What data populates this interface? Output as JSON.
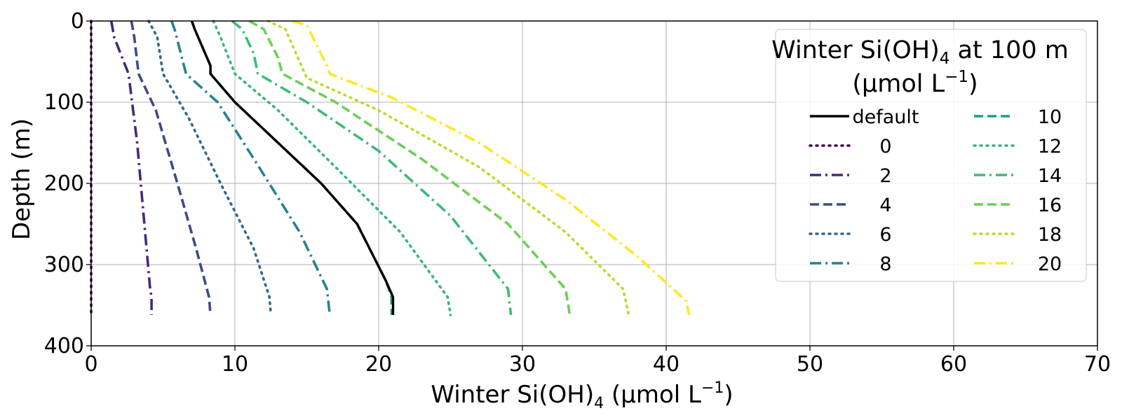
{
  "chart_data": {
    "type": "line",
    "title": "",
    "xlabel_main": "Winter Si(OH)",
    "xlabel_sub": "4",
    "xlabel_unit_pre": " (μmol L",
    "xlabel_unit_sup": "−1",
    "xlabel_unit_post": ")",
    "ylabel": "Depth (m)",
    "xlim": [
      0,
      70
    ],
    "ylim": [
      0,
      400
    ],
    "y_inverted": true,
    "grid": true,
    "xticks": [
      "0",
      "10",
      "20",
      "30",
      "40",
      "50",
      "60",
      "70"
    ],
    "yticks": [
      "0",
      "100",
      "200",
      "300",
      "400"
    ],
    "legend": {
      "placement": "top-right",
      "title_line1_main": "Winter Si(OH)",
      "title_line1_sub": "4",
      "title_line1_post": " at 100 m",
      "title_line2_pre": "(μmol L",
      "title_line2_sup": "−1",
      "title_line2_post": ")",
      "columns": 2
    },
    "series": [
      {
        "name": "default",
        "color": "#000000",
        "style": "solid",
        "x": [
          7.0,
          7.2,
          8.3,
          8.3,
          10.0,
          13.0,
          16.0,
          18.5,
          20.5,
          21.0,
          21.0
        ],
        "y": [
          0,
          10,
          55,
          65,
          100,
          150,
          200,
          250,
          320,
          340,
          362
        ]
      },
      {
        "name": "0",
        "color": "#440154",
        "style": "dotted",
        "x": [
          0,
          0,
          0,
          0
        ],
        "y": [
          0,
          100,
          200,
          362
        ]
      },
      {
        "name": "2",
        "color": "#482878",
        "style": "dashdot",
        "x": [
          1.4,
          1.6,
          2.6,
          3.2,
          3.7,
          4.1,
          4.2,
          4.2
        ],
        "y": [
          0,
          20,
          65,
          150,
          250,
          330,
          340,
          362
        ]
      },
      {
        "name": "4",
        "color": "#3e4989",
        "style": "dashed",
        "x": [
          2.8,
          3.0,
          3.3,
          4.5,
          6.0,
          7.3,
          8.2,
          8.3
        ],
        "y": [
          0,
          20,
          65,
          110,
          200,
          280,
          340,
          362
        ]
      },
      {
        "name": "6",
        "color": "#31688e",
        "style": "dotted",
        "x": [
          4.0,
          4.6,
          5.0,
          6.8,
          9.0,
          11.3,
          12.4,
          12.5
        ],
        "y": [
          0,
          20,
          65,
          120,
          200,
          280,
          340,
          362
        ]
      },
      {
        "name": "8",
        "color": "#26828e",
        "style": "dashdot",
        "x": [
          5.6,
          5.8,
          6.6,
          8.8,
          11.5,
          14.5,
          16.4,
          16.6
        ],
        "y": [
          0,
          10,
          65,
          100,
          175,
          260,
          330,
          362
        ]
      },
      {
        "name": "10",
        "color": "#1f9e89",
        "style": "dashed",
        "x": [
          7.0,
          7.2,
          8.3,
          8.3,
          10.0,
          13.0,
          16.0,
          18.5,
          20.5,
          20.9,
          20.9
        ],
        "y": [
          0,
          10,
          55,
          65,
          100,
          150,
          200,
          250,
          320,
          340,
          362
        ]
      },
      {
        "name": "12",
        "color": "#35b779",
        "style": "dotted",
        "x": [
          8.5,
          9.0,
          10.0,
          13.0,
          17.0,
          21.5,
          24.8,
          25.0
        ],
        "y": [
          0,
          20,
          65,
          110,
          180,
          260,
          340,
          362
        ]
      },
      {
        "name": "14",
        "color": "#3cbb75",
        "style": "dashdot",
        "x": [
          9.8,
          10.5,
          11.3,
          11.6,
          15.0,
          20.0,
          25.0,
          29.0,
          29.2
        ],
        "y": [
          0,
          10,
          40,
          65,
          100,
          160,
          240,
          330,
          362
        ]
      },
      {
        "name": "16",
        "color": "#6ece58",
        "style": "dashed",
        "x": [
          11.0,
          12.0,
          13.0,
          13.3,
          17.0,
          23.0,
          29.0,
          33.0,
          33.3
        ],
        "y": [
          0,
          10,
          45,
          65,
          100,
          170,
          250,
          330,
          362
        ]
      },
      {
        "name": "18",
        "color": "#b5de2b",
        "style": "dotted",
        "x": [
          12.3,
          13.5,
          14.5,
          15.0,
          20.0,
          27.0,
          33.0,
          37.0,
          37.4
        ],
        "y": [
          0,
          10,
          50,
          70,
          110,
          180,
          260,
          330,
          362
        ]
      },
      {
        "name": "20",
        "color": "#fde725",
        "style": "dashdot",
        "x": [
          14.0,
          15.0,
          16.4,
          16.6,
          21.0,
          27.0,
          33.0,
          38.0,
          41.4,
          41.6
        ],
        "y": [
          0,
          5,
          55,
          65,
          95,
          150,
          220,
          290,
          345,
          362
        ]
      }
    ]
  }
}
